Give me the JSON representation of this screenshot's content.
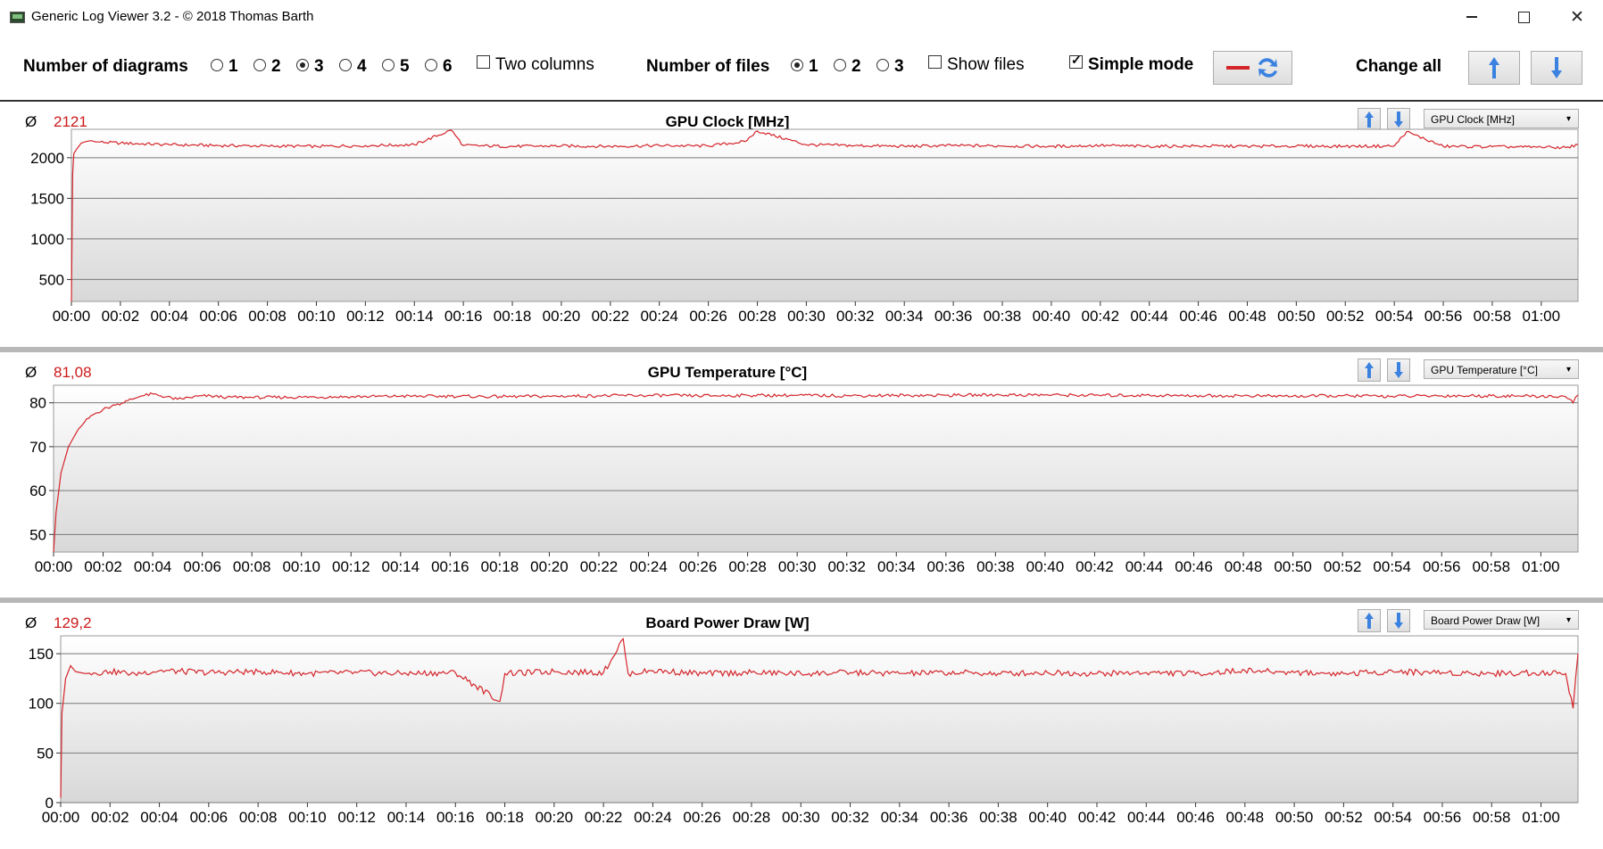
{
  "window": {
    "title": "Generic Log Viewer 3.2 - © 2018 Thomas Barth"
  },
  "toolbar": {
    "num_diagrams_label": "Number of diagrams",
    "diagram_options": [
      "1",
      "2",
      "3",
      "4",
      "5",
      "6"
    ],
    "diagram_selected": "3",
    "two_columns_label": "Two columns",
    "two_columns_checked": false,
    "num_files_label": "Number of files",
    "file_options": [
      "1",
      "2",
      "3"
    ],
    "file_selected": "1",
    "show_files_label": "Show files",
    "show_files_checked": false,
    "simple_mode_label": "Simple mode",
    "simple_mode_checked": true,
    "change_all_label": "Change all"
  },
  "colors": {
    "series": "#d4252b",
    "accent_avg": "#cc1a1a",
    "arrow": "#3b82e0"
  },
  "x_ticks": [
    "00:00",
    "00:02",
    "00:04",
    "00:06",
    "00:08",
    "00:10",
    "00:12",
    "00:14",
    "00:16",
    "00:18",
    "00:20",
    "00:22",
    "00:24",
    "00:26",
    "00:28",
    "00:30",
    "00:32",
    "00:34",
    "00:36",
    "00:38",
    "00:40",
    "00:42",
    "00:44",
    "00:46",
    "00:48",
    "00:50",
    "00:52",
    "00:54",
    "00:56",
    "00:58",
    "01:00"
  ],
  "chart_data": [
    {
      "type": "line",
      "title": "GPU Clock [MHz]",
      "average": "2121",
      "selector": "GPU Clock [MHz]",
      "x_unit": "minutes",
      "xlim": [
        0,
        61.5
      ],
      "ylim": [
        230,
        2350
      ],
      "y_ticks": [
        500,
        1000,
        1500,
        2000
      ],
      "grid": true,
      "series": [
        {
          "x": [
            0,
            0.05,
            0.1,
            0.2,
            0.4,
            0.6,
            0.8,
            1,
            2,
            4,
            6,
            8,
            10,
            12,
            14,
            15.5,
            16,
            18,
            20,
            22,
            24,
            26,
            27.5,
            28,
            30,
            32,
            34,
            36,
            38,
            40,
            42,
            44,
            46,
            48,
            50,
            52,
            54,
            54.5,
            56,
            58,
            60,
            61,
            61.5
          ],
          "y": [
            230,
            1800,
            2050,
            2100,
            2180,
            2200,
            2210,
            2195,
            2180,
            2160,
            2150,
            2145,
            2140,
            2150,
            2160,
            2340,
            2150,
            2140,
            2145,
            2140,
            2150,
            2145,
            2200,
            2330,
            2160,
            2150,
            2140,
            2150,
            2145,
            2140,
            2150,
            2140,
            2145,
            2140,
            2145,
            2140,
            2145,
            2320,
            2140,
            2135,
            2130,
            2125,
            2160
          ]
        }
      ]
    },
    {
      "type": "line",
      "title": "GPU Temperature [°C]",
      "average": "81,08",
      "selector": "GPU Temperature [°C]",
      "x_unit": "minutes",
      "xlim": [
        0,
        61.5
      ],
      "ylim": [
        46,
        84
      ],
      "y_ticks": [
        50,
        60,
        70,
        80
      ],
      "grid": true,
      "series": [
        {
          "x": [
            0,
            0.1,
            0.3,
            0.6,
            1,
            1.5,
            2,
            2.5,
            3,
            3.5,
            4,
            5,
            6,
            7,
            8,
            10,
            12,
            14,
            16,
            18,
            20,
            22,
            24,
            26,
            28,
            30,
            32,
            34,
            36,
            38,
            40,
            42,
            44,
            46,
            48,
            50,
            52,
            54,
            56,
            58,
            60,
            61,
            61.3,
            61.5
          ],
          "y": [
            46,
            55,
            64,
            70,
            74,
            77,
            78.5,
            79.5,
            80.5,
            81.5,
            82,
            80.8,
            81.6,
            81.3,
            81.2,
            81.3,
            81.4,
            81.5,
            81.5,
            81.4,
            81.5,
            81.6,
            81.7,
            81.6,
            81.7,
            81.7,
            81.6,
            81.7,
            81.7,
            81.8,
            81.8,
            81.7,
            81.7,
            81.6,
            81.6,
            81.5,
            81.6,
            81.5,
            81.6,
            81.6,
            81.5,
            81.4,
            80,
            81.8
          ]
        }
      ]
    },
    {
      "type": "line",
      "title": "Board Power Draw [W]",
      "average": "129,2",
      "selector": "Board Power Draw [W]",
      "x_unit": "minutes",
      "xlim": [
        0,
        61.5
      ],
      "ylim": [
        0,
        168
      ],
      "y_ticks": [
        0,
        50,
        100,
        150
      ],
      "grid": true,
      "series": [
        {
          "x": [
            0,
            0.05,
            0.2,
            0.4,
            0.6,
            1,
            2,
            3,
            4,
            6,
            8,
            10,
            12,
            14,
            16,
            17.8,
            18,
            20,
            22,
            22.8,
            23,
            24,
            26,
            28,
            30,
            32,
            34,
            36,
            38,
            40,
            42,
            44,
            46,
            48,
            50,
            52,
            54,
            56,
            58,
            60,
            61,
            61.3,
            61.5
          ],
          "y": [
            5,
            90,
            125,
            138,
            132,
            130,
            132,
            130,
            133,
            131,
            132,
            130,
            131,
            130,
            131,
            102,
            130,
            132,
            131,
            165,
            130,
            133,
            130,
            131,
            130,
            131,
            130,
            131,
            130,
            131,
            130,
            131,
            130,
            133,
            131,
            130,
            132,
            131,
            130,
            131,
            130,
            95,
            150
          ]
        }
      ]
    }
  ]
}
